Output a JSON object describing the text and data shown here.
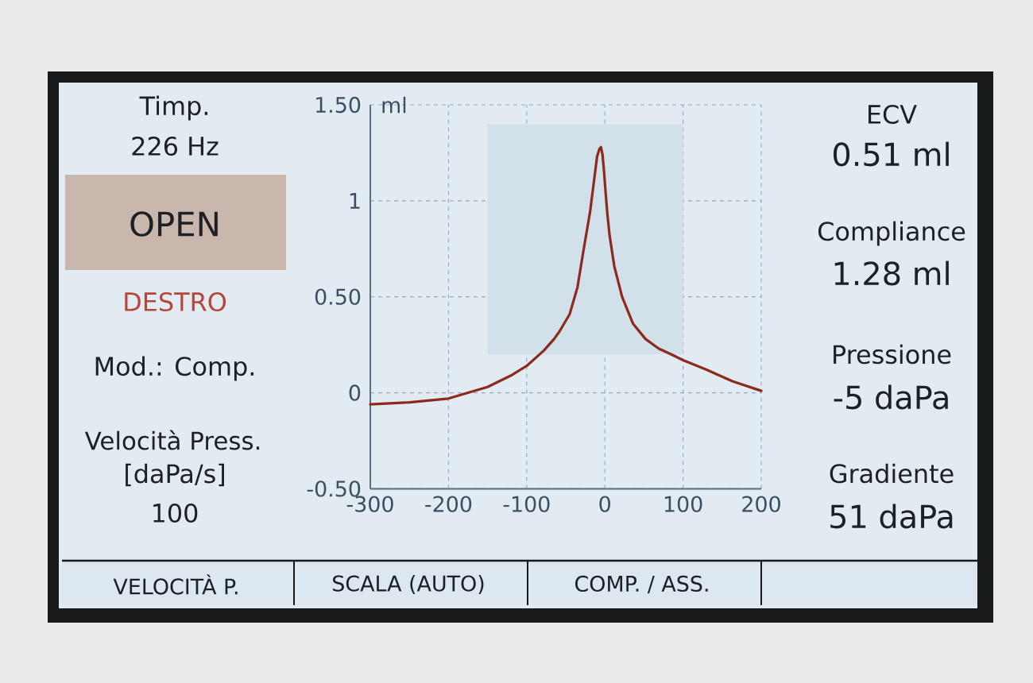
{
  "chart_data": {
    "type": "line",
    "ylabel": "ml",
    "annotations": [
      "Timp.",
      "226 Hz",
      "OPEN",
      "DESTRO",
      "Mod.: Comp.",
      "Velocità Press.",
      "[daPa/s]",
      "100",
      "ECV",
      "0.51 ml",
      "Compliance",
      "1.28 ml",
      "Pressione",
      "-5 daPa",
      "Gradiente",
      "51 daPa",
      "VELOCITÀ P.",
      "SCALA (AUTO)",
      "COMP. / ASS."
    ],
    "x": [
      -300,
      -250,
      -200,
      -175,
      -150,
      -120,
      -100,
      -78,
      -65,
      -58,
      -45,
      -35,
      -27,
      -19,
      -14,
      -10,
      -7,
      -5,
      -3,
      -1,
      1,
      3,
      6,
      12,
      22,
      36,
      52,
      69,
      85,
      100,
      130,
      163,
      200
    ],
    "series": [
      {
        "x": [
          -150,
          100
        ],
        "values": [
          null,
          null
        ],
        "lower": [
          0.2,
          0.2
        ],
        "upper": [
          1.4,
          1.4
        ],
        "color": "#d2e0e9"
      },
      {
        "color": "#8c2a1c",
        "values": [
          -0.06,
          -0.05,
          -0.03,
          0.0,
          0.03,
          0.09,
          0.14,
          0.22,
          0.28,
          0.32,
          0.41,
          0.55,
          0.75,
          0.94,
          1.1,
          1.23,
          1.27,
          1.28,
          1.24,
          1.15,
          1.04,
          0.94,
          0.82,
          0.66,
          0.5,
          0.36,
          0.28,
          0.23,
          0.2,
          0.17,
          0.12,
          0.06,
          0.01
        ]
      }
    ],
    "xlim": [
      -300,
      200
    ],
    "ylim": [
      -0.5,
      1.5
    ],
    "xticks": [
      -300,
      -200,
      -100,
      0,
      100,
      200
    ],
    "yticks": [
      {
        "value": -0.5,
        "label": "-0.50"
      },
      0,
      {
        "value": 0.5,
        "label": "0.50"
      },
      1,
      {
        "value": 1.5,
        "label": "1.50"
      }
    ],
    "grid": true
  }
}
